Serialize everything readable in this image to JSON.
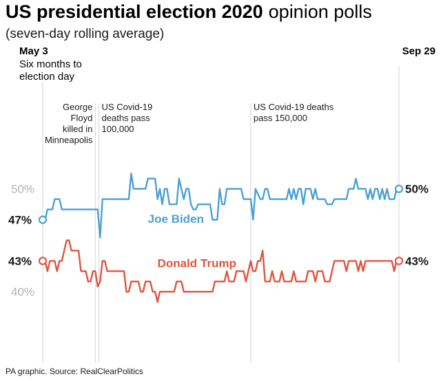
{
  "title": {
    "bold": "US presidential election 2020",
    "regular": "opinion polls"
  },
  "subtitle": "(seven-day rolling average)",
  "source": "PA graphic. Source: RealClearPolitics",
  "colors": {
    "biden": "#4a9fd6",
    "trump": "#e1533c",
    "axis_text": "#b3b3b3",
    "grid": "#dcdcdc",
    "text": "#1a1a1a"
  },
  "chart_data": {
    "type": "line",
    "title": "US presidential election 2020 opinion polls",
    "subtitle": "(seven-day rolling average)",
    "x_start": 0,
    "x_end": 149,
    "x_start_label": "May 3",
    "x_start_sublabel": [
      "Six months to",
      "election day"
    ],
    "x_end_label": "Sep 29",
    "ylim": [
      34,
      59
    ],
    "y_ticks": [
      {
        "value": 50,
        "label": "50%"
      },
      {
        "value": 40,
        "label": "40%"
      }
    ],
    "annotations": [
      {
        "x": 22,
        "lines": [
          "George",
          "Floyd",
          "killed in",
          "Minneapolis"
        ],
        "align": "right"
      },
      {
        "x": 23.5,
        "lines": [
          "US Covid-19",
          "deaths pass",
          "100,000"
        ],
        "align": "left"
      },
      {
        "x": 87,
        "lines": [
          "US Covid-19 deaths",
          "pass 150,000"
        ],
        "align": "left"
      }
    ],
    "series": [
      {
        "name": "Joe Biden",
        "key": "biden",
        "start_label": "47%",
        "end_label": "50%",
        "label_x": 44,
        "label_value": 46.7,
        "values": [
          47,
          47,
          48,
          48,
          48,
          49,
          49,
          49,
          48,
          48,
          48,
          48,
          48,
          48,
          48,
          48,
          48,
          48,
          48,
          48,
          48,
          48,
          48,
          48,
          45.3,
          49,
          49,
          49,
          49,
          49,
          49,
          49,
          49,
          49,
          49,
          49,
          49,
          51.5,
          50,
          50,
          50,
          50,
          50,
          50,
          51,
          51,
          51,
          51,
          49,
          50,
          48.5,
          50,
          50,
          48.5,
          48.5,
          48.5,
          48.5,
          51,
          50,
          49,
          50,
          50,
          48.5,
          48,
          48,
          48.5,
          48.5,
          48.5,
          48.5,
          48.5,
          48.5,
          47,
          47,
          47,
          50,
          48.5,
          48.5,
          50,
          50,
          50,
          50,
          50,
          50,
          50,
          49,
          49,
          49,
          49,
          47,
          50,
          49.5,
          49,
          49,
          50,
          50,
          49,
          49,
          49,
          49,
          49,
          49,
          49,
          49,
          50,
          49,
          50,
          49,
          50,
          50,
          48.5,
          50,
          50,
          50,
          49,
          50,
          49,
          49,
          49,
          49,
          48.5,
          48.5,
          48.5,
          49,
          49,
          49,
          49,
          49,
          49,
          50,
          50,
          50,
          51,
          50,
          50,
          50,
          50,
          49,
          50,
          49,
          50,
          50,
          49,
          50,
          49,
          50,
          49,
          49,
          49,
          50
        ],
        "final_value": 50
      },
      {
        "name": "Donald Trump",
        "key": "trump",
        "start_label": "43%",
        "end_label": "43%",
        "label_x": 48,
        "label_value": 42.4,
        "values": [
          43,
          43,
          42,
          43,
          43,
          43,
          42,
          43,
          43,
          44,
          45,
          45,
          44,
          44,
          44,
          44,
          42,
          42,
          42,
          41,
          41,
          42,
          42,
          40.5,
          41,
          43,
          43,
          42,
          42,
          42,
          42,
          42,
          42,
          42,
          42,
          40,
          40,
          41,
          41,
          41,
          41,
          40,
          40,
          41,
          41,
          41,
          40,
          40,
          39,
          40,
          40,
          40,
          40,
          40,
          40,
          40,
          41,
          41,
          41,
          40,
          40,
          40,
          40,
          40,
          40,
          40,
          40,
          40,
          40,
          40,
          40,
          40,
          41,
          41,
          41,
          41,
          41,
          42,
          41,
          41,
          41,
          42,
          42,
          42,
          42,
          41,
          42,
          43,
          42,
          42,
          43,
          43,
          44,
          41,
          41,
          41,
          42,
          41,
          41,
          41,
          42,
          41,
          41,
          41,
          41,
          42,
          41,
          41,
          41,
          41,
          41,
          42,
          42,
          42,
          41,
          42,
          42,
          42,
          41,
          41,
          41,
          42,
          43,
          43,
          43,
          43,
          43,
          42,
          43,
          43,
          43,
          43,
          42,
          43,
          42,
          43,
          43,
          43,
          43,
          43,
          43,
          43,
          43,
          43,
          43,
          43,
          43,
          42,
          43,
          43
        ],
        "final_value": 43
      }
    ]
  }
}
